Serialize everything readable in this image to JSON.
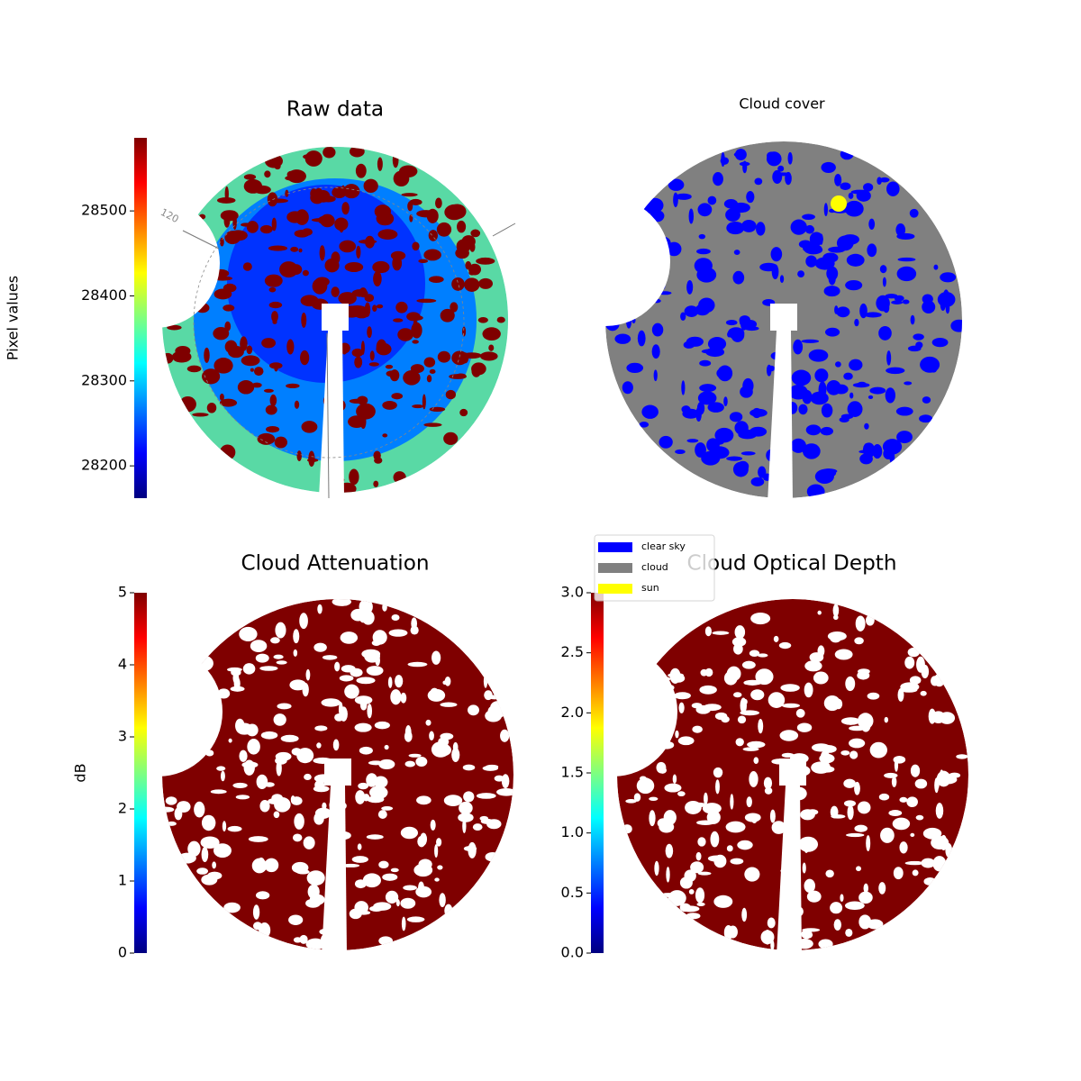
{
  "chart_data": [
    {
      "type": "image",
      "title": "Raw data",
      "colormap": "jet",
      "annotations": [
        "120"
      ],
      "colorbar": {
        "label": "Pixel values",
        "ylim": [
          28162,
          28586
        ],
        "yticks": [
          28200,
          28300,
          28400,
          28500
        ]
      }
    },
    {
      "type": "image",
      "title": "Cloud cover",
      "series": [
        {
          "name": "clear sky",
          "color": "#0000ff"
        },
        {
          "name": "cloud",
          "color": "#808080"
        },
        {
          "name": "sun",
          "color": "#ffff00"
        }
      ]
    },
    {
      "type": "image",
      "title": "Cloud Attenuation",
      "colormap": "jet",
      "colorbar": {
        "label": "dB",
        "ylim": [
          0,
          5
        ],
        "yticks": [
          0,
          1,
          2,
          3,
          4,
          5
        ]
      }
    },
    {
      "type": "image",
      "title": "Cloud Optical Depth",
      "colormap": "jet",
      "colorbar": {
        "ylim": [
          0,
          3
        ],
        "yticks": [
          {
            "value": 0,
            "label": "0.0"
          },
          {
            "value": 0.5,
            "label": "0.5"
          },
          {
            "value": 1,
            "label": "1.0"
          },
          {
            "value": 1.5,
            "label": "1.5"
          },
          {
            "value": 2,
            "label": "2.0"
          },
          {
            "value": 2.5,
            "label": "2.5"
          },
          {
            "value": 3,
            "label": "3.0"
          }
        ]
      }
    }
  ]
}
